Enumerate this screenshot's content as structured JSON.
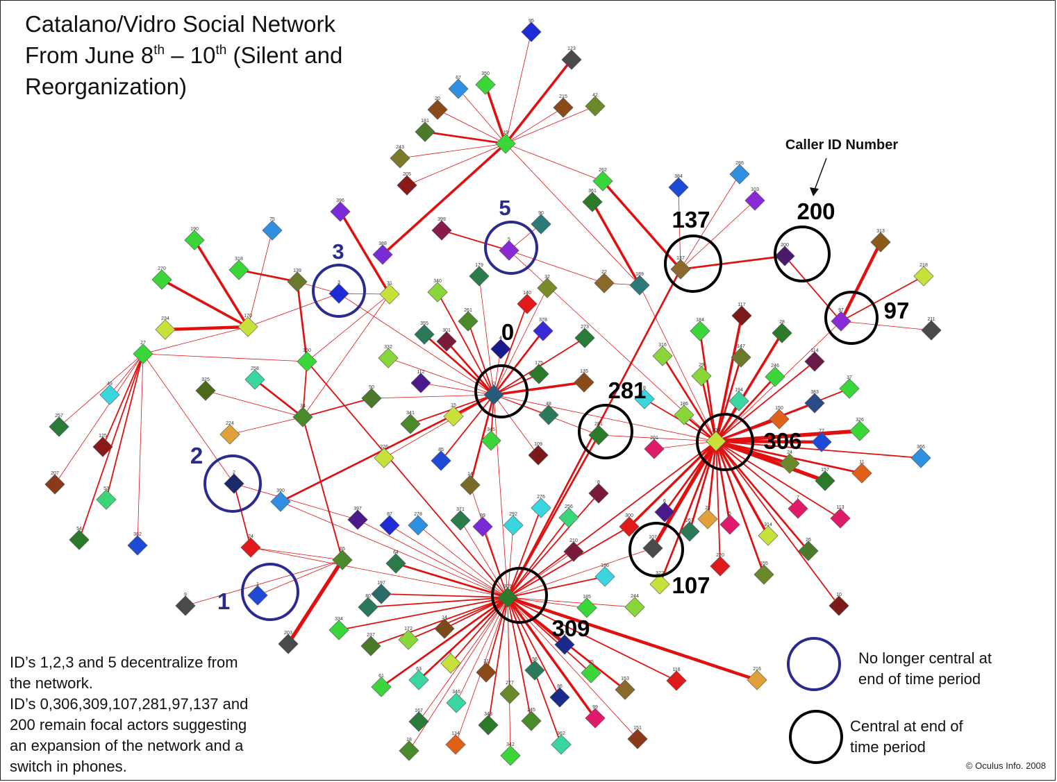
{
  "title": {
    "line1": "Catalano/Vidro Social Network",
    "line2_pre": "From June 8",
    "line2_sup1": "th",
    "line2_mid": " – 10",
    "line2_sup2": "th",
    "line2_post": " (Silent and",
    "line3": "Reorganization)"
  },
  "annotation": {
    "caller_id": "Caller ID Number"
  },
  "note": "ID’s 1,2,3 and 5 decentralize from\nthe network.\nID’s  0,306,309,107,281,97,137 and\n200 remain focal actors suggesting\nan expansion of the network and a\nswitch in phones.",
  "legend": {
    "no_longer_central": "No longer central at\nend of time period",
    "central": "Central at end of\ntime period"
  },
  "copyright": "© Oculus Info. 2008",
  "colors": {
    "edge": "#e01010",
    "no_longer_central_ring": "#2b2b8f",
    "central_ring": "#000000",
    "no_longer_central_label": "#2b2b8f",
    "central_label": "#000000"
  },
  "nodes": [
    {
      "id": "95",
      "color": "#1f2bd6"
    },
    {
      "id": "123",
      "color": "#4a4a4a"
    },
    {
      "id": "67",
      "color": "#2f8fe0"
    },
    {
      "id": "350",
      "color": "#3ad63a"
    },
    {
      "id": "215",
      "color": "#8a4a1a"
    },
    {
      "id": "42",
      "color": "#6a8a2a"
    },
    {
      "id": "20",
      "color": "#8a4a1a"
    },
    {
      "id": "181",
      "color": "#4a7a2a"
    },
    {
      "id": "19",
      "color": "#3ad63a"
    },
    {
      "id": "243",
      "color": "#7a7a2a"
    },
    {
      "id": "205",
      "color": "#8a1a1a"
    },
    {
      "id": "262",
      "color": "#3ad63a"
    },
    {
      "id": "286",
      "color": "#2f8fe0"
    },
    {
      "id": "384",
      "color": "#1f4ad6"
    },
    {
      "id": "103",
      "color": "#8a2ad6"
    },
    {
      "id": "361",
      "color": "#2a7a2a"
    },
    {
      "id": "396",
      "color": "#7a2ad6"
    },
    {
      "id": "399",
      "color": "#8a1a4a"
    },
    {
      "id": "90",
      "color": "#2a7a7a"
    },
    {
      "id": "5",
      "color": "#8a2ad6"
    },
    {
      "id": "388",
      "color": "#7a2ad6"
    },
    {
      "id": "190",
      "color": "#3ad63a"
    },
    {
      "id": "75",
      "color": "#2f8fe0"
    },
    {
      "id": "318",
      "color": "#3ad63a"
    },
    {
      "id": "270",
      "color": "#3ad63a"
    },
    {
      "id": "139",
      "color": "#6a7a2a"
    },
    {
      "id": "3",
      "color": "#1f2bd6"
    },
    {
      "id": "31",
      "color": "#c8e03a"
    },
    {
      "id": "340",
      "color": "#8ad63a"
    },
    {
      "id": "179",
      "color": "#2a7a4a"
    },
    {
      "id": "32",
      "color": "#7a8a2a"
    },
    {
      "id": "140",
      "color": "#e01a1a"
    },
    {
      "id": "22",
      "color": "#8a6a2a"
    },
    {
      "id": "189",
      "color": "#2a7a7a"
    },
    {
      "id": "137",
      "color": "#8a6a2a"
    },
    {
      "id": "200",
      "color": "#4a1a6a"
    },
    {
      "id": "313",
      "color": "#8a5a1a"
    },
    {
      "id": "218",
      "color": "#c8e03a"
    },
    {
      "id": "97",
      "color": "#8a2ad6"
    },
    {
      "id": "211",
      "color": "#4a4a4a"
    },
    {
      "id": "234",
      "color": "#c8e03a"
    },
    {
      "id": "170",
      "color": "#c8e03a"
    },
    {
      "id": "27",
      "color": "#3ad63a"
    },
    {
      "id": "350b",
      "color": "#3ad63a"
    },
    {
      "id": "355",
      "color": "#2a7a5a"
    },
    {
      "id": "301",
      "color": "#7a1a3a"
    },
    {
      "id": "261",
      "color": "#4a8a2a"
    },
    {
      "id": "4",
      "color": "#1a1a8a"
    },
    {
      "id": "378",
      "color": "#3a2ad6"
    },
    {
      "id": "273",
      "color": "#2a7a3a"
    },
    {
      "id": "332",
      "color": "#8ad63a"
    },
    {
      "id": "112",
      "color": "#4a1a8a"
    },
    {
      "id": "175",
      "color": "#2a7a2a"
    },
    {
      "id": "135",
      "color": "#8a4a1a"
    },
    {
      "id": "0",
      "color": "#2a5a7a"
    },
    {
      "id": "316",
      "color": "#8ad63a"
    },
    {
      "id": "184",
      "color": "#3ad63a"
    },
    {
      "id": "117",
      "color": "#7a1a1a"
    },
    {
      "id": "28",
      "color": "#2a7a2a"
    },
    {
      "id": "147",
      "color": "#6a7a2a"
    },
    {
      "id": "114",
      "color": "#6a1a4a"
    },
    {
      "id": "49",
      "color": "#3ad6e0"
    },
    {
      "id": "258",
      "color": "#3ad6a0"
    },
    {
      "id": "325",
      "color": "#4a6a1a"
    },
    {
      "id": "50",
      "color": "#4a7a2a"
    },
    {
      "id": "34",
      "color": "#4a8a2a"
    },
    {
      "id": "257",
      "color": "#2a7a3a"
    },
    {
      "id": "125",
      "color": "#8a1a1a"
    },
    {
      "id": "224",
      "color": "#e0a03a"
    },
    {
      "id": "341",
      "color": "#4a8a2a"
    },
    {
      "id": "15",
      "color": "#c8e03a"
    },
    {
      "id": "48",
      "color": "#2a7a5a"
    },
    {
      "id": "281",
      "color": "#2a7a2a"
    },
    {
      "id": "8",
      "color": "#3ad6e0"
    },
    {
      "id": "186",
      "color": "#8ad63a"
    },
    {
      "id": "29",
      "color": "#8ad63a"
    },
    {
      "id": "194",
      "color": "#3ad6a0"
    },
    {
      "id": "246",
      "color": "#3ad63a"
    },
    {
      "id": "383",
      "color": "#2a4a8a"
    },
    {
      "id": "37",
      "color": "#3ad63a"
    },
    {
      "id": "150",
      "color": "#e0601a"
    },
    {
      "id": "306",
      "color": "#c8e03a"
    },
    {
      "id": "77",
      "color": "#1f4ad6"
    },
    {
      "id": "326",
      "color": "#3ad63a"
    },
    {
      "id": "366",
      "color": "#2f8fe0"
    },
    {
      "id": "207",
      "color": "#8a3a1a"
    },
    {
      "id": "53",
      "color": "#3ad67a"
    },
    {
      "id": "226",
      "color": "#c8e03a"
    },
    {
      "id": "85",
      "color": "#1f4ad6"
    },
    {
      "id": "345",
      "color": "#3ad63a"
    },
    {
      "id": "109",
      "color": "#7a1a1a"
    },
    {
      "id": "201",
      "color": "#e01a6a"
    },
    {
      "id": "24",
      "color": "#6a8a2a"
    },
    {
      "id": "157",
      "color": "#2a7a2a"
    },
    {
      "id": "11",
      "color": "#e0601a"
    },
    {
      "id": "2",
      "color": "#1a2a6a"
    },
    {
      "id": "390",
      "color": "#2f8fe0"
    },
    {
      "id": "14",
      "color": "#7a6a2a"
    },
    {
      "id": "54",
      "color": "#2a7a2a"
    },
    {
      "id": "382",
      "color": "#1f4ad6"
    },
    {
      "id": "397",
      "color": "#4a1a8a"
    },
    {
      "id": "87",
      "color": "#1f2bd6"
    },
    {
      "id": "278",
      "color": "#2f8fe0"
    },
    {
      "id": "371",
      "color": "#2a7a4a"
    },
    {
      "id": "89",
      "color": "#7a2ad6"
    },
    {
      "id": "292",
      "color": "#3ad6e0"
    },
    {
      "id": "276",
      "color": "#3ad6e0"
    },
    {
      "id": "256",
      "color": "#3ad67a"
    },
    {
      "id": "8b",
      "color": "#7a1a3a"
    },
    {
      "id": "300",
      "color": "#e01a1a"
    },
    {
      "id": "6",
      "color": "#4a1a8a"
    },
    {
      "id": "267",
      "color": "#2a7a5a"
    },
    {
      "id": "21",
      "color": "#e0a03a"
    },
    {
      "id": "5b",
      "color": "#e01a6a"
    },
    {
      "id": "314",
      "color": "#c8e03a"
    },
    {
      "id": "7",
      "color": "#e01a6a"
    },
    {
      "id": "113",
      "color": "#e01a6a"
    },
    {
      "id": "24b",
      "color": "#e01a1a"
    },
    {
      "id": "65",
      "color": "#4a8a2a"
    },
    {
      "id": "210",
      "color": "#7a1a3a"
    },
    {
      "id": "107",
      "color": "#4a4a4a"
    },
    {
      "id": "26",
      "color": "#4a7a2a"
    },
    {
      "id": "1",
      "color": "#1f4ad6"
    },
    {
      "id": "64",
      "color": "#2a7a4a"
    },
    {
      "id": "196",
      "color": "#3ad6e0"
    },
    {
      "id": "322",
      "color": "#c8e03a"
    },
    {
      "id": "220",
      "color": "#e01a1a"
    },
    {
      "id": "155",
      "color": "#6a8a2a"
    },
    {
      "id": "9",
      "color": "#4a4a4a"
    },
    {
      "id": "197",
      "color": "#2a6a6a"
    },
    {
      "id": "80",
      "color": "#2a7a5a"
    },
    {
      "id": "309",
      "color": "#2a7a2a"
    },
    {
      "id": "185",
      "color": "#3ad63a"
    },
    {
      "id": "244",
      "color": "#8ad63a"
    },
    {
      "id": "10",
      "color": "#7a1a1a"
    },
    {
      "id": "334",
      "color": "#3ad63a"
    },
    {
      "id": "14b",
      "color": "#7a4a1a"
    },
    {
      "id": "172",
      "color": "#8ad63a"
    },
    {
      "id": "237",
      "color": "#4a7a2a"
    },
    {
      "id": "203",
      "color": "#4a4a4a"
    },
    {
      "id": "309b",
      "color": "#1a2a8a"
    },
    {
      "id": "116",
      "color": "#e01a1a"
    },
    {
      "id": "216",
      "color": "#e0a03a"
    },
    {
      "id": "61",
      "color": "#3ad63a"
    },
    {
      "id": "63",
      "color": "#3ad6a0"
    },
    {
      "id": "2x",
      "color": "#c8e03a"
    },
    {
      "id": "31x",
      "color": "#8a4a1a"
    },
    {
      "id": "56",
      "color": "#2a7a5a"
    },
    {
      "id": "35",
      "color": "#3ad63a"
    },
    {
      "id": "153",
      "color": "#8a6a2a"
    },
    {
      "id": "346",
      "color": "#3ad6a0"
    },
    {
      "id": "277",
      "color": "#6a8a2a"
    },
    {
      "id": "86",
      "color": "#1a2a8a"
    },
    {
      "id": "167",
      "color": "#2a7a3a"
    },
    {
      "id": "245",
      "color": "#4a8a2a"
    },
    {
      "id": "99",
      "color": "#e01a6a"
    },
    {
      "id": "343",
      "color": "#2a7a2a"
    },
    {
      "id": "134",
      "color": "#e0601a"
    },
    {
      "id": "362",
      "color": "#3ad6a0"
    },
    {
      "id": "151",
      "color": "#8a3a1a"
    },
    {
      "id": "18",
      "color": "#4a8a2a"
    },
    {
      "id": "342",
      "color": "#3ad63a"
    }
  ],
  "node_labels": [
    "95",
    "123",
    "67",
    "350",
    "215",
    "42",
    "20",
    "181",
    "19",
    "243",
    "205",
    "262",
    "286",
    "384",
    "103",
    "361",
    "396",
    "399",
    "90",
    "5",
    "388",
    "190",
    "75",
    "318",
    "270",
    "139",
    "3",
    "31",
    "340",
    "179",
    "32",
    "140",
    "22",
    "189",
    "137",
    "200",
    "313",
    "218",
    "97",
    "211",
    "234",
    "170",
    "27",
    "350",
    "355",
    "301",
    "261",
    "4",
    "378",
    "273",
    "332",
    "112",
    "175",
    "135",
    "0",
    "316",
    "184",
    "117",
    "28",
    "147",
    "114",
    "49",
    "258",
    "325",
    "50",
    "34",
    "257",
    "125",
    "224",
    "341",
    "15",
    "48",
    "281",
    "8",
    "186",
    "29",
    "194",
    "246",
    "383",
    "37",
    "150",
    "306",
    "77",
    "326",
    "366",
    "207",
    "53",
    "226",
    "85",
    "345",
    "109",
    "201",
    "24",
    "157",
    "11",
    "2",
    "390",
    "14",
    "54",
    "382",
    "397",
    "87",
    "278",
    "371",
    "89",
    "292",
    "276",
    "256",
    "8",
    "300",
    "6",
    "267",
    "21",
    "5",
    "314",
    "7",
    "113",
    "24",
    "65",
    "210",
    "107",
    "26",
    "1",
    "64",
    "196",
    "322",
    "220",
    "155",
    "9",
    "197",
    "80",
    "309",
    "185",
    "244",
    "10",
    "334",
    "14",
    "172",
    "237",
    "203",
    "309",
    "116",
    "216",
    "61",
    "63",
    "2",
    "31",
    "56",
    "35",
    "153",
    "346",
    "277",
    "86",
    "167",
    "245",
    "99",
    "343",
    "134",
    "362",
    "151",
    "18",
    "342"
  ],
  "ring_labels": {
    "decentral": [
      {
        "id": "r5",
        "text": "5"
      },
      {
        "id": "r3",
        "text": "3"
      },
      {
        "id": "r2",
        "text": "2"
      },
      {
        "id": "r1",
        "text": "1"
      }
    ],
    "central": [
      {
        "id": "r137",
        "text": "137"
      },
      {
        "id": "r200",
        "text": "200"
      },
      {
        "id": "r97",
        "text": "97"
      },
      {
        "id": "r0",
        "text": "0"
      },
      {
        "id": "r281",
        "text": "281"
      },
      {
        "id": "r306",
        "text": "306"
      },
      {
        "id": "r107",
        "text": "107"
      },
      {
        "id": "r309",
        "text": "309"
      }
    ]
  }
}
